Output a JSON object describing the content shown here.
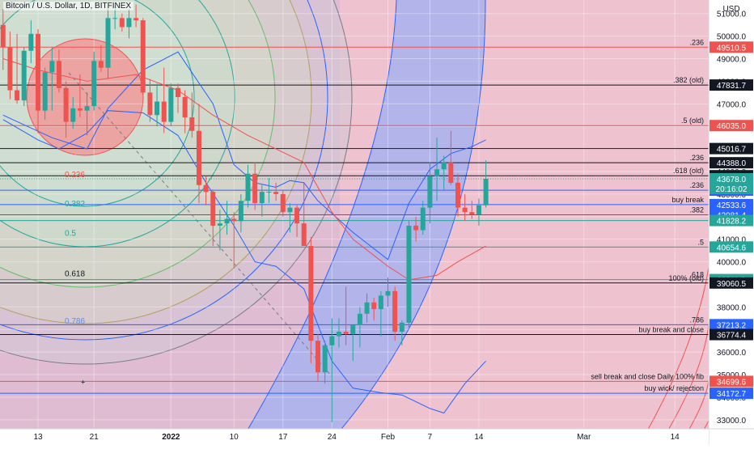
{
  "header": {
    "title": "Bitcoin / U.S. Dollar, 1D, BITFINEX"
  },
  "price_axis": {
    "currency": "USD",
    "current_price": "43678.0",
    "countdown": "20:16:02"
  },
  "colors": {
    "up": "#26a69a",
    "down": "#ef5350",
    "current": "#26a69a"
  },
  "chart_data": {
    "type": "candlestick",
    "title": "Bitcoin / U.S. Dollar, 1D, BITFINEX",
    "ylim": [
      32600,
      51600
    ],
    "y_ticks": [
      33000,
      34000,
      35000,
      36000,
      37000,
      38000,
      39000,
      40000,
      41000,
      42000,
      43000,
      44000,
      45000,
      46000,
      47000,
      48000,
      49000,
      50000,
      51000
    ],
    "x_ticks": [
      {
        "label": "13",
        "date": "2021-12-13"
      },
      {
        "label": "21",
        "date": "2021-12-21"
      },
      {
        "label": "2022",
        "date": "2022-01-01"
      },
      {
        "label": "10",
        "date": "2022-01-10"
      },
      {
        "label": "17",
        "date": "2022-01-17"
      },
      {
        "label": "24",
        "date": "2022-01-24"
      },
      {
        "label": "Feb",
        "date": "2022-02-01"
      },
      {
        "label": "7",
        "date": "2022-02-07"
      },
      {
        "label": "14",
        "date": "2022-02-14"
      },
      {
        "label": "Mar",
        "date": "2022-03-01"
      },
      {
        "label": "14",
        "date": "2022-03-14"
      }
    ],
    "candles": [
      {
        "date": "2021-12-08",
        "o": 50500,
        "h": 51200,
        "l": 48500,
        "c": 49500
      },
      {
        "date": "2021-12-09",
        "o": 49500,
        "h": 50200,
        "l": 47200,
        "c": 47600
      },
      {
        "date": "2021-12-10",
        "o": 47600,
        "h": 50100,
        "l": 47000,
        "c": 47150
      },
      {
        "date": "2021-12-11",
        "o": 47150,
        "h": 49500,
        "l": 46900,
        "c": 49350
      },
      {
        "date": "2021-12-12",
        "o": 49350,
        "h": 50700,
        "l": 48800,
        "c": 50100
      },
      {
        "date": "2021-12-13",
        "o": 50100,
        "h": 50300,
        "l": 45700,
        "c": 46700
      },
      {
        "date": "2021-12-14",
        "o": 46700,
        "h": 48600,
        "l": 46300,
        "c": 48400
      },
      {
        "date": "2021-12-15",
        "o": 48400,
        "h": 49500,
        "l": 46700,
        "c": 48900
      },
      {
        "date": "2021-12-16",
        "o": 48900,
        "h": 49400,
        "l": 47500,
        "c": 47700
      },
      {
        "date": "2021-12-17",
        "o": 47700,
        "h": 48000,
        "l": 45500,
        "c": 46200
      },
      {
        "date": "2021-12-18",
        "o": 46200,
        "h": 47300,
        "l": 45900,
        "c": 46800
      },
      {
        "date": "2021-12-19",
        "o": 46800,
        "h": 48300,
        "l": 46400,
        "c": 46700
      },
      {
        "date": "2021-12-20",
        "o": 46700,
        "h": 47500,
        "l": 45600,
        "c": 46900
      },
      {
        "date": "2021-12-21",
        "o": 46900,
        "h": 49300,
        "l": 46700,
        "c": 48900
      },
      {
        "date": "2021-12-22",
        "o": 48900,
        "h": 49600,
        "l": 48400,
        "c": 48600
      },
      {
        "date": "2021-12-23",
        "o": 48600,
        "h": 51300,
        "l": 48100,
        "c": 50800
      },
      {
        "date": "2021-12-24",
        "o": 50800,
        "h": 51300,
        "l": 50300,
        "c": 50800
      },
      {
        "date": "2021-12-25",
        "o": 50800,
        "h": 51000,
        "l": 50200,
        "c": 50400
      },
      {
        "date": "2021-12-26",
        "o": 50400,
        "h": 51200,
        "l": 49900,
        "c": 50800
      },
      {
        "date": "2021-12-27",
        "o": 50800,
        "h": 51400,
        "l": 50400,
        "c": 50700
      },
      {
        "date": "2021-12-28",
        "o": 50700,
        "h": 50800,
        "l": 47400,
        "c": 47500
      },
      {
        "date": "2021-12-29",
        "o": 47500,
        "h": 48100,
        "l": 46200,
        "c": 46500
      },
      {
        "date": "2021-12-30",
        "o": 46500,
        "h": 47900,
        "l": 46000,
        "c": 47100
      },
      {
        "date": "2021-12-31",
        "o": 47100,
        "h": 48600,
        "l": 45700,
        "c": 46200
      },
      {
        "date": "2022-01-01",
        "o": 46200,
        "h": 47900,
        "l": 46000,
        "c": 47700
      },
      {
        "date": "2022-01-02",
        "o": 47700,
        "h": 47900,
        "l": 46600,
        "c": 47300
      },
      {
        "date": "2022-01-03",
        "o": 47300,
        "h": 47600,
        "l": 45700,
        "c": 46400
      },
      {
        "date": "2022-01-04",
        "o": 46400,
        "h": 47500,
        "l": 45500,
        "c": 45800
      },
      {
        "date": "2022-01-05",
        "o": 45800,
        "h": 47000,
        "l": 42600,
        "c": 43400
      },
      {
        "date": "2022-01-06",
        "o": 43400,
        "h": 43800,
        "l": 42500,
        "c": 43100
      },
      {
        "date": "2022-01-07",
        "o": 43100,
        "h": 43200,
        "l": 40700,
        "c": 41600
      },
      {
        "date": "2022-01-08",
        "o": 41600,
        "h": 42300,
        "l": 40500,
        "c": 41700
      },
      {
        "date": "2022-01-09",
        "o": 41700,
        "h": 42700,
        "l": 41200,
        "c": 41900
      },
      {
        "date": "2022-01-10",
        "o": 41900,
        "h": 42200,
        "l": 39700,
        "c": 41800
      },
      {
        "date": "2022-01-11",
        "o": 41800,
        "h": 43000,
        "l": 41300,
        "c": 42700
      },
      {
        "date": "2022-01-12",
        "o": 42700,
        "h": 44300,
        "l": 42400,
        "c": 43900
      },
      {
        "date": "2022-01-13",
        "o": 43900,
        "h": 44400,
        "l": 42300,
        "c": 42600
      },
      {
        "date": "2022-01-14",
        "o": 42600,
        "h": 43400,
        "l": 42000,
        "c": 43100
      },
      {
        "date": "2022-01-15",
        "o": 43100,
        "h": 43700,
        "l": 42600,
        "c": 43100
      },
      {
        "date": "2022-01-16",
        "o": 43100,
        "h": 43500,
        "l": 42700,
        "c": 43000
      },
      {
        "date": "2022-01-17",
        "o": 43000,
        "h": 43200,
        "l": 42000,
        "c": 42200
      },
      {
        "date": "2022-01-18",
        "o": 42200,
        "h": 42600,
        "l": 41300,
        "c": 42400
      },
      {
        "date": "2022-01-19",
        "o": 42400,
        "h": 42500,
        "l": 41100,
        "c": 41700
      },
      {
        "date": "2022-01-20",
        "o": 41700,
        "h": 43500,
        "l": 40800,
        "c": 40700
      },
      {
        "date": "2022-01-21",
        "o": 40700,
        "h": 41100,
        "l": 35500,
        "c": 36500
      },
      {
        "date": "2022-01-22",
        "o": 36500,
        "h": 36800,
        "l": 34700,
        "c": 35100
      },
      {
        "date": "2022-01-23",
        "o": 35100,
        "h": 36500,
        "l": 34600,
        "c": 36300
      },
      {
        "date": "2022-01-24",
        "o": 36300,
        "h": 37500,
        "l": 32900,
        "c": 36700
      },
      {
        "date": "2022-01-25",
        "o": 36700,
        "h": 37500,
        "l": 36200,
        "c": 36900
      },
      {
        "date": "2022-01-26",
        "o": 36900,
        "h": 38900,
        "l": 36300,
        "c": 36800
      },
      {
        "date": "2022-01-27",
        "o": 36800,
        "h": 37200,
        "l": 35600,
        "c": 37200
      },
      {
        "date": "2022-01-28",
        "o": 37200,
        "h": 38000,
        "l": 36200,
        "c": 37700
      },
      {
        "date": "2022-01-29",
        "o": 37700,
        "h": 38600,
        "l": 37300,
        "c": 38200
      },
      {
        "date": "2022-01-30",
        "o": 38200,
        "h": 38400,
        "l": 37400,
        "c": 37900
      },
      {
        "date": "2022-01-31",
        "o": 37900,
        "h": 38700,
        "l": 36700,
        "c": 38500
      },
      {
        "date": "2022-02-01",
        "o": 38500,
        "h": 39300,
        "l": 38000,
        "c": 38700
      },
      {
        "date": "2022-02-02",
        "o": 38700,
        "h": 38900,
        "l": 36500,
        "c": 36900
      },
      {
        "date": "2022-02-03",
        "o": 36900,
        "h": 37400,
        "l": 36300,
        "c": 37300
      },
      {
        "date": "2022-02-04",
        "o": 37300,
        "h": 41800,
        "l": 37000,
        "c": 41600
      },
      {
        "date": "2022-02-05",
        "o": 41600,
        "h": 42000,
        "l": 40900,
        "c": 41400
      },
      {
        "date": "2022-02-06",
        "o": 41400,
        "h": 42700,
        "l": 41200,
        "c": 42400
      },
      {
        "date": "2022-02-07",
        "o": 42400,
        "h": 44400,
        "l": 41700,
        "c": 43800
      },
      {
        "date": "2022-02-08",
        "o": 43800,
        "h": 45500,
        "l": 42700,
        "c": 44100
      },
      {
        "date": "2022-02-09",
        "o": 44100,
        "h": 44700,
        "l": 43200,
        "c": 44400
      },
      {
        "date": "2022-02-10",
        "o": 44400,
        "h": 45800,
        "l": 43400,
        "c": 43500
      },
      {
        "date": "2022-02-11",
        "o": 43500,
        "h": 43900,
        "l": 42000,
        "c": 42400
      },
      {
        "date": "2022-02-12",
        "o": 42400,
        "h": 43000,
        "l": 41800,
        "c": 42200
      },
      {
        "date": "2022-02-13",
        "o": 42200,
        "h": 42700,
        "l": 41900,
        "c": 42100
      },
      {
        "date": "2022-02-14",
        "o": 42100,
        "h": 42800,
        "l": 41600,
        "c": 42500
      },
      {
        "date": "2022-02-15",
        "o": 42500,
        "h": 44500,
        "l": 42400,
        "c": 43678
      }
    ],
    "lines": {
      "upper_band": [
        {
          "date": "2021-12-08",
          "v": 46500
        },
        {
          "date": "2021-12-15",
          "v": 45500
        },
        {
          "date": "2021-12-20",
          "v": 45000
        },
        {
          "date": "2021-12-23",
          "v": 46800
        },
        {
          "date": "2021-12-28",
          "v": 48500
        },
        {
          "date": "2022-01-02",
          "v": 49300
        },
        {
          "date": "2022-01-07",
          "v": 47000
        },
        {
          "date": "2022-01-10",
          "v": 44300
        },
        {
          "date": "2022-01-13",
          "v": 43500
        },
        {
          "date": "2022-01-16",
          "v": 43300
        },
        {
          "date": "2022-01-18",
          "v": 43600
        },
        {
          "date": "2022-01-20",
          "v": 43500
        },
        {
          "date": "2022-01-22",
          "v": 42700
        },
        {
          "date": "2022-01-27",
          "v": 41300
        },
        {
          "date": "2022-02-01",
          "v": 40100
        },
        {
          "date": "2022-02-04",
          "v": 42600
        },
        {
          "date": "2022-02-07",
          "v": 44100
        },
        {
          "date": "2022-02-10",
          "v": 44800
        },
        {
          "date": "2022-02-13",
          "v": 45100
        },
        {
          "date": "2022-02-15",
          "v": 45400
        }
      ],
      "middle_ma": [
        {
          "date": "2021-12-08",
          "v": 49000
        },
        {
          "date": "2021-12-13",
          "v": 48500
        },
        {
          "date": "2021-12-20",
          "v": 48000
        },
        {
          "date": "2021-12-27",
          "v": 48300
        },
        {
          "date": "2022-01-02",
          "v": 47600
        },
        {
          "date": "2022-01-07",
          "v": 46500
        },
        {
          "date": "2022-01-12",
          "v": 45600
        },
        {
          "date": "2022-01-16",
          "v": 45000
        },
        {
          "date": "2022-01-20",
          "v": 44400
        },
        {
          "date": "2022-01-24",
          "v": 42200
        },
        {
          "date": "2022-01-27",
          "v": 41000
        },
        {
          "date": "2022-02-01",
          "v": 39800
        },
        {
          "date": "2022-02-04",
          "v": 39200
        },
        {
          "date": "2022-02-08",
          "v": 39400
        },
        {
          "date": "2022-02-11",
          "v": 40000
        },
        {
          "date": "2022-02-15",
          "v": 40700
        }
      ],
      "lower_band": [
        {
          "date": "2021-12-08",
          "v": 46300
        },
        {
          "date": "2021-12-13",
          "v": 45400
        },
        {
          "date": "2021-12-16",
          "v": 45000
        },
        {
          "date": "2021-12-20",
          "v": 45700
        },
        {
          "date": "2021-12-23",
          "v": 46700
        },
        {
          "date": "2021-12-28",
          "v": 46600
        },
        {
          "date": "2022-01-02",
          "v": 45600
        },
        {
          "date": "2022-01-06",
          "v": 43500
        },
        {
          "date": "2022-01-10",
          "v": 41600
        },
        {
          "date": "2022-01-13",
          "v": 40000
        },
        {
          "date": "2022-01-16",
          "v": 39800
        },
        {
          "date": "2022-01-20",
          "v": 38800
        },
        {
          "date": "2022-01-22",
          "v": 37200
        },
        {
          "date": "2022-01-24",
          "v": 35600
        },
        {
          "date": "2022-01-27",
          "v": 34400
        },
        {
          "date": "2022-01-31",
          "v": 34200
        },
        {
          "date": "2022-02-03",
          "v": 34100
        },
        {
          "date": "2022-02-07",
          "v": 33500
        },
        {
          "date": "2022-02-09",
          "v": 33300
        },
        {
          "date": "2022-02-12",
          "v": 34600
        },
        {
          "date": "2022-02-15",
          "v": 35600
        }
      ]
    },
    "left_fib_labels": [
      {
        "text": "0.236",
        "price": 43900
      },
      {
        "text": "0.382",
        "price": 42600
      },
      {
        "text": "0.5",
        "price": 41300
      },
      {
        "text": "0.618",
        "price": 39500
      },
      {
        "text": "0.786",
        "price": 37400
      }
    ],
    "horizontal_levels": [
      {
        "price": 49510.5,
        "label": ".236",
        "tag": "49510.5",
        "color": "#ef5350",
        "tag_color": "#ef5350"
      },
      {
        "price": 47831.7,
        "label": ".382 (old)",
        "tag": "47831.7",
        "color": "#131722",
        "tag_color": "#131722"
      },
      {
        "price": 46035.0,
        "label": ".5 (old)",
        "tag": "46035.0",
        "color": "#ef5350",
        "tag_color": "#ef5350"
      },
      {
        "price": 45016.7,
        "label": "",
        "tag": "45016.7",
        "color": "#131722",
        "tag_color": "#131722"
      },
      {
        "price": 44388.0,
        "label": ".236",
        "tag": "44388.0",
        "color": "#131722",
        "tag_color": "#131722"
      },
      {
        "price": 43813.8,
        "label": ".618 (old)",
        "tag": "43813.8",
        "color": "#131722",
        "tag_color": "#131722"
      },
      {
        "price": 43172.8,
        "label": ".236",
        "tag": "43172.8",
        "color": "#2962ff",
        "tag_color": "#2962ff"
      },
      {
        "price": 42533.6,
        "label": "buy break",
        "tag": "42533.6",
        "color": "#2962ff",
        "tag_color": "#2962ff"
      },
      {
        "price": 42081.4,
        "label": ".382",
        "tag": "42081.4",
        "color": "#2962ff",
        "tag_color": "#2962ff"
      },
      {
        "price": 41828.2,
        "label": "",
        "tag": "41828.2",
        "color": "#26a69a",
        "tag_color": "#26a69a"
      },
      {
        "price": 40654.6,
        "label": ".5",
        "tag": "40654.6",
        "color": "#26a69a",
        "tag_color": "#26a69a"
      },
      {
        "price": 39211.2,
        "label": ".618",
        "tag": "39211.2",
        "color": "#26a69a",
        "tag_color": "#26a69a"
      },
      {
        "price": 39060.5,
        "label": "100% (old)",
        "tag": "39060.5",
        "color": "#131722",
        "tag_color": "#131722"
      },
      {
        "price": 37213.2,
        "label": ".786",
        "tag": "37213.2",
        "color": "#2962ff",
        "tag_color": "#2962ff"
      },
      {
        "price": 36774.4,
        "label": "buy break and close",
        "tag": "36774.4",
        "color": "#131722",
        "tag_color": "#131722"
      },
      {
        "price": 34699.6,
        "label": "sell break and close Daily 100% fib",
        "tag": "34699.6",
        "color": "#ef5350",
        "tag_color": "#ef5350"
      },
      {
        "price": 34172.7,
        "label": "buy wick/ rejection",
        "tag": "34172.7",
        "color": "#2962ff",
        "tag_color": "#2962ff"
      }
    ]
  }
}
